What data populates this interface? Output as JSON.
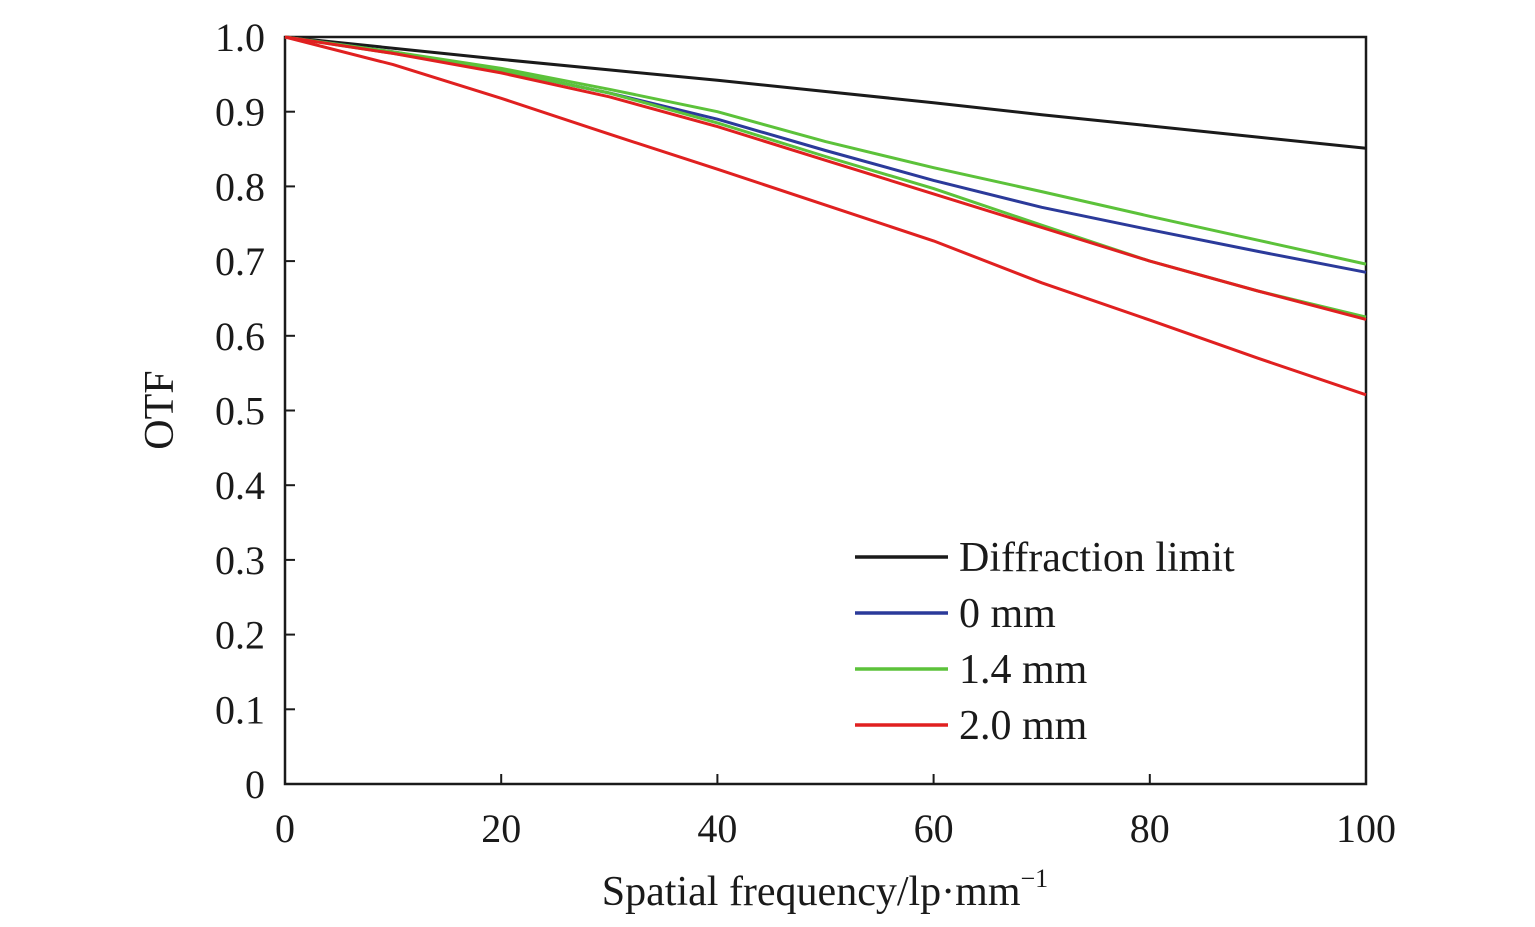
{
  "chart_data": {
    "type": "line",
    "xlabel": "Spatial frequency/lp·mm",
    "xlabel_superscript": "−1",
    "ylabel": "OTF",
    "xlim": [
      0,
      100
    ],
    "ylim": [
      0,
      1.0
    ],
    "x_ticks": [
      "0",
      "20",
      "40",
      "60",
      "80",
      "100"
    ],
    "y_ticks": [
      "0",
      "0.1",
      "0.2",
      "0.3",
      "0.4",
      "0.5",
      "0.6",
      "0.7",
      "0.8",
      "0.9",
      "1.0"
    ],
    "grid": false,
    "legend_position": "lower-right",
    "legend": [
      {
        "label": "Diffraction limit",
        "color": "#1a1a1a"
      },
      {
        "label": "0 mm",
        "color": "#2b3a9a"
      },
      {
        "label": "1.4 mm",
        "color": "#5cc23a"
      },
      {
        "label": "2.0 mm",
        "color": "#e02020"
      }
    ],
    "x": [
      0,
      10,
      20,
      30,
      40,
      50,
      60,
      70,
      80,
      90,
      100
    ],
    "series": [
      {
        "legend_index": 0,
        "color": "#1a1a1a",
        "values": [
          1.0,
          0.985,
          0.97,
          0.956,
          0.942,
          0.927,
          0.912,
          0.896,
          0.881,
          0.866,
          0.851
        ]
      },
      {
        "legend_index": 1,
        "color": "#2b3a9a",
        "values": [
          1.0,
          0.98,
          0.955,
          0.925,
          0.89,
          0.848,
          0.808,
          0.772,
          0.742,
          0.713,
          0.685
        ]
      },
      {
        "legend_index": 2,
        "color": "#5cc23a",
        "values": [
          1.0,
          0.98,
          0.958,
          0.93,
          0.9,
          0.86,
          0.825,
          0.793,
          0.76,
          0.728,
          0.696
        ]
      },
      {
        "legend_index": 2,
        "color": "#5cc23a",
        "values": [
          1.0,
          0.978,
          0.955,
          0.925,
          0.885,
          0.84,
          0.797,
          0.748,
          0.7,
          0.66,
          0.625
        ]
      },
      {
        "legend_index": 3,
        "color": "#e02020",
        "values": [
          1.0,
          0.978,
          0.952,
          0.92,
          0.88,
          0.835,
          0.79,
          0.745,
          0.7,
          0.66,
          0.622
        ]
      },
      {
        "legend_index": 3,
        "color": "#e02020",
        "values": [
          1.0,
          0.963,
          0.918,
          0.87,
          0.823,
          0.775,
          0.727,
          0.671,
          0.621,
          0.57,
          0.521
        ]
      }
    ]
  }
}
